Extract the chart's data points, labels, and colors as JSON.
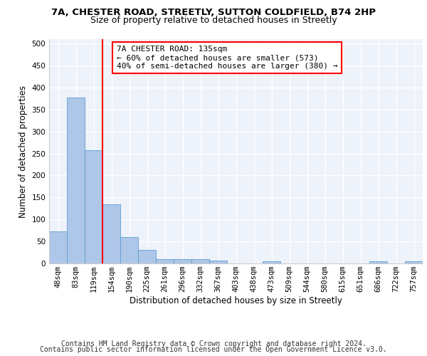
{
  "title1": "7A, CHESTER ROAD, STREETLY, SUTTON COLDFIELD, B74 2HP",
  "title2": "Size of property relative to detached houses in Streetly",
  "xlabel": "Distribution of detached houses by size in Streetly",
  "ylabel": "Number of detached properties",
  "footer1": "Contains HM Land Registry data © Crown copyright and database right 2024.",
  "footer2": "Contains public sector information licensed under the Open Government Licence v3.0.",
  "bar_labels": [
    "48sqm",
    "83sqm",
    "119sqm",
    "154sqm",
    "190sqm",
    "225sqm",
    "261sqm",
    "296sqm",
    "332sqm",
    "367sqm",
    "403sqm",
    "438sqm",
    "473sqm",
    "509sqm",
    "544sqm",
    "580sqm",
    "615sqm",
    "651sqm",
    "686sqm",
    "722sqm",
    "757sqm"
  ],
  "bar_values": [
    73,
    378,
    258,
    135,
    60,
    30,
    10,
    10,
    10,
    7,
    0,
    0,
    5,
    0,
    0,
    0,
    0,
    0,
    5,
    0,
    5
  ],
  "bar_color": "#aec6e8",
  "bar_edgecolor": "#5a9fd4",
  "red_line_x": 2.5,
  "annotation_line1": "7A CHESTER ROAD: 135sqm",
  "annotation_line2": "← 60% of detached houses are smaller (573)",
  "annotation_line3": "40% of semi-detached houses are larger (380) →",
  "ylim": [
    0,
    510
  ],
  "yticks": [
    0,
    50,
    100,
    150,
    200,
    250,
    300,
    350,
    400,
    450,
    500
  ],
  "background_color": "#eef2fa",
  "grid_color": "#ffffff",
  "title1_fontsize": 9.5,
  "title2_fontsize": 9,
  "axis_label_fontsize": 8.5,
  "tick_fontsize": 7.5,
  "footer_fontsize": 7,
  "annot_fontsize": 8
}
